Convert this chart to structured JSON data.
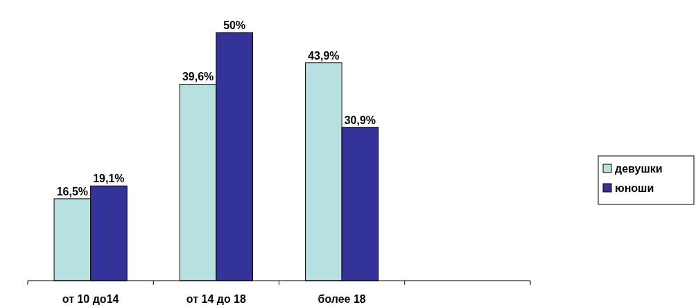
{
  "chart_data": {
    "type": "bar",
    "categories": [
      "от 10 до14",
      "от 14 до 18",
      "более 18",
      null
    ],
    "series": [
      {
        "name": "девушки",
        "color": "#b8e0e0",
        "values": [
          16.5,
          39.6,
          43.9,
          null
        ],
        "value_labels": [
          "16,5%",
          "39,6%",
          "43,9%",
          null
        ]
      },
      {
        "name": "юноши",
        "color": "#333399",
        "values": [
          19.1,
          50,
          30.9,
          null
        ],
        "value_labels": [
          "19,1%",
          "50%",
          "30,9%",
          null
        ]
      }
    ],
    "legend": "right"
  }
}
